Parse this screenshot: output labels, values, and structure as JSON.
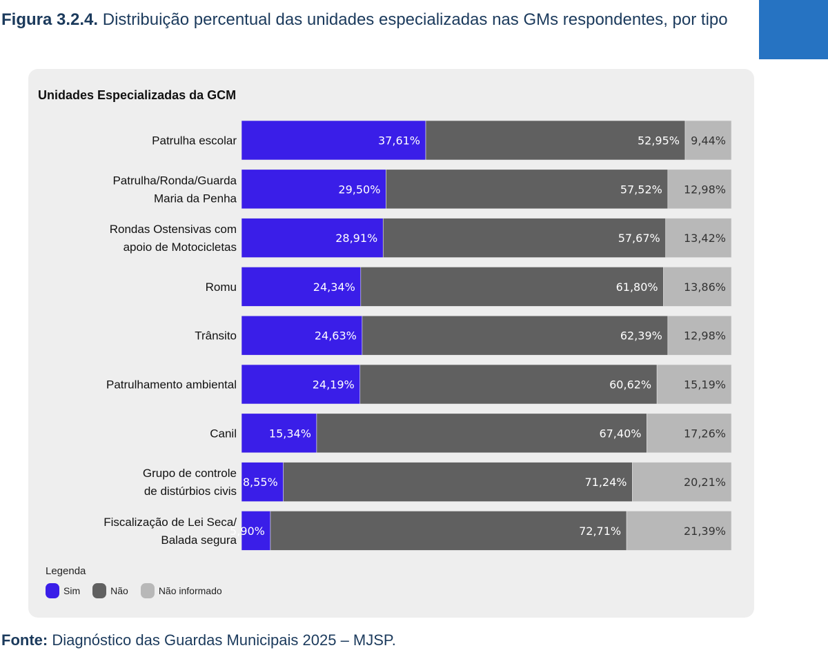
{
  "header": {
    "figure_label": "Figura 3.2.4.",
    "title": "Distribuição percentual das unidades especializadas nas GMs respondentes, por tipo"
  },
  "source": {
    "label": "Fonte:",
    "text": "Diagnóstico das Guardas Municipais 2025 – MJSP."
  },
  "chart_data": {
    "type": "bar",
    "orientation": "horizontal",
    "stacked": true,
    "title": "Unidades Especializadas da GCM",
    "categories": [
      "Patrulha escolar",
      "Patrulha/Ronda/Guarda|Maria da Penha",
      "Rondas Ostensivas com|apoio de Motocicletas",
      "Romu",
      "Trânsito",
      "Patrulhamento ambiental",
      "Canil",
      "Grupo de controle|de distúrbios civis",
      "Fiscalização de Lei Seca/|Balada segura"
    ],
    "series": [
      {
        "name": "Sim",
        "color": "#3a1ee8",
        "values": [
          37.61,
          29.5,
          28.91,
          24.34,
          24.63,
          24.19,
          15.34,
          8.55,
          5.9
        ]
      },
      {
        "name": "Não",
        "color": "#606060",
        "values": [
          52.95,
          57.52,
          57.67,
          61.8,
          62.39,
          60.62,
          67.4,
          71.24,
          72.71
        ]
      },
      {
        "name": "Não informado",
        "color": "#b8b8b8",
        "values": [
          9.44,
          12.98,
          13.42,
          13.86,
          12.98,
          15.19,
          17.26,
          20.21,
          21.39
        ]
      }
    ],
    "xlim": [
      0,
      100
    ],
    "grid": false,
    "legend_title": "Legenda",
    "legend_placement": "bottom-left",
    "value_format": "percent with comma decimal"
  }
}
